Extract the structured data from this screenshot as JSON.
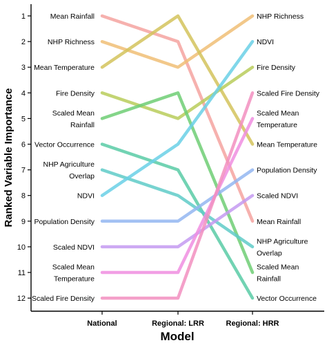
{
  "chart_data": {
    "type": "line",
    "title": "",
    "xlabel": "Model",
    "ylabel": "Ranked Variable Importance",
    "categories": [
      "National",
      "Regional: LRR",
      "Regional: HRR"
    ],
    "y_ticks": [
      "1",
      "2",
      "3",
      "4",
      "5",
      "6",
      "7",
      "8",
      "9",
      "10",
      "11",
      "12"
    ],
    "ylim": [
      1,
      12
    ],
    "y_reversed": true,
    "series": [
      {
        "name": "Mean Rainfall",
        "values": [
          1,
          2,
          9
        ],
        "color": "#f4a3a0"
      },
      {
        "name": "NHP Richness",
        "values": [
          2,
          3,
          1
        ],
        "color": "#f0be76"
      },
      {
        "name": "Mean Temperature",
        "values": [
          3,
          1,
          6
        ],
        "color": "#d4c35c"
      },
      {
        "name": "Fire Density",
        "values": [
          4,
          5,
          3
        ],
        "color": "#b9cc5a"
      },
      {
        "name": "Scaled Mean Rainfall",
        "values": [
          5,
          4,
          11
        ],
        "color": "#6fce74"
      },
      {
        "name": "Vector Occurrence",
        "values": [
          6,
          7,
          12
        ],
        "color": "#59cba6"
      },
      {
        "name": "NHP Agriculture Overlap",
        "values": [
          7,
          8,
          10
        ],
        "color": "#5fcbc8"
      },
      {
        "name": "NDVI",
        "values": [
          8,
          6,
          2
        ],
        "color": "#6ad0e6"
      },
      {
        "name": "Population Density",
        "values": [
          9,
          9,
          7
        ],
        "color": "#93b6f1"
      },
      {
        "name": "Scaled NDVI",
        "values": [
          10,
          10,
          8
        ],
        "color": "#c49af1"
      },
      {
        "name": "Scaled Mean Temperature",
        "values": [
          11,
          11,
          5
        ],
        "color": "#f08ee0"
      },
      {
        "name": "Scaled Fire Density",
        "values": [
          12,
          12,
          4
        ],
        "color": "#f28fbf"
      }
    ],
    "left_labels": [
      [
        "Mean Rainfall"
      ],
      [
        "NHP Richness"
      ],
      [
        "Mean Temperature"
      ],
      [
        "Fire Density"
      ],
      [
        "Scaled Mean",
        "Rainfall"
      ],
      [
        "Vector Occurrence"
      ],
      [
        "NHP Agriculture",
        "Overlap"
      ],
      [
        "NDVI"
      ],
      [
        "Population Density"
      ],
      [
        "Scaled NDVI"
      ],
      [
        "Scaled Mean",
        "Temperature"
      ],
      [
        "Scaled Fire Density"
      ]
    ],
    "right_labels": [
      [
        "NHP Richness"
      ],
      [
        "NDVI"
      ],
      [
        "Fire Density"
      ],
      [
        "Scaled Fire Density"
      ],
      [
        "Scaled Mean",
        "Temperature"
      ],
      [
        "Mean Temperature"
      ],
      [
        "Population Density"
      ],
      [
        "Scaled NDVI"
      ],
      [
        "Mean Rainfall"
      ],
      [
        "NHP Agriculture",
        "Overlap"
      ],
      [
        "Scaled Mean",
        "Rainfall"
      ],
      [
        "Vector Occurrence"
      ]
    ]
  }
}
